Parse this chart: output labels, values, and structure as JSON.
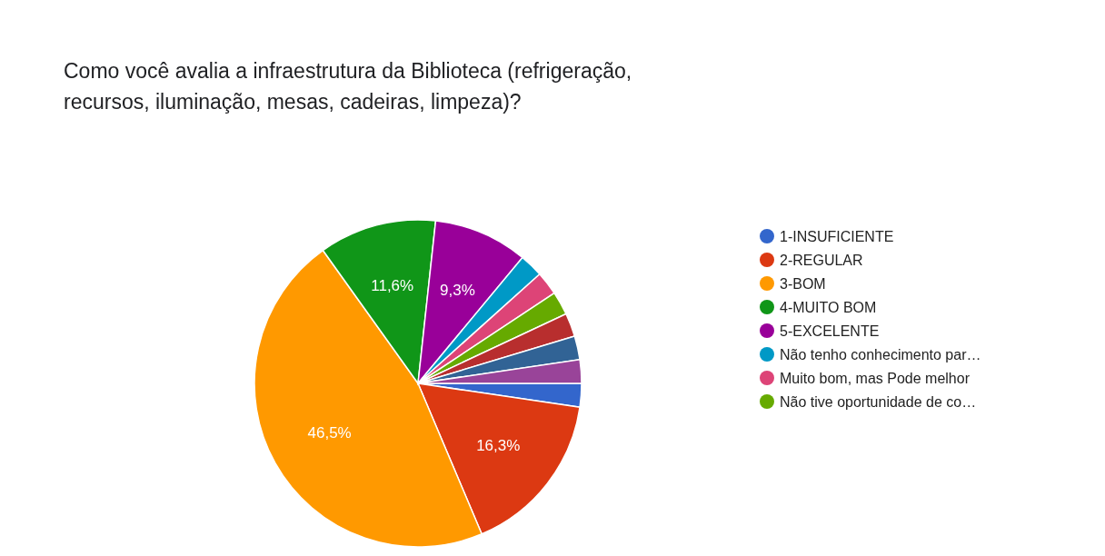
{
  "chart_data": {
    "type": "pie",
    "title": "Como você avalia a infraestrutura da Biblioteca (refrigeração, recursos, iluminação, mesas, cadeiras, limpeza)?",
    "categories": [
      "1-INSUFICIENTE",
      "2-REGULAR",
      "3-BOM",
      "4-MUITO BOM",
      "5-EXCELENTE",
      "Não tenho conhecimento par…",
      "Muito bom, mas Pode melhor",
      "Não tive oportunidade de co…",
      null,
      null,
      null
    ],
    "values": [
      2.33,
      16.3,
      46.5,
      11.6,
      9.3,
      2.33,
      2.33,
      2.33,
      2.33,
      2.33,
      2.33
    ],
    "value_labels": [
      null,
      "16,3%",
      "46,5%",
      "11,6%",
      "9,3%",
      null,
      null,
      null,
      null,
      null,
      null
    ],
    "colors": [
      "#3366cc",
      "#dc3912",
      "#ff9900",
      "#109618",
      "#990099",
      "#0099c6",
      "#dd4477",
      "#66aa00",
      "#b82e2e",
      "#316395",
      "#994499"
    ],
    "legend": "right"
  }
}
